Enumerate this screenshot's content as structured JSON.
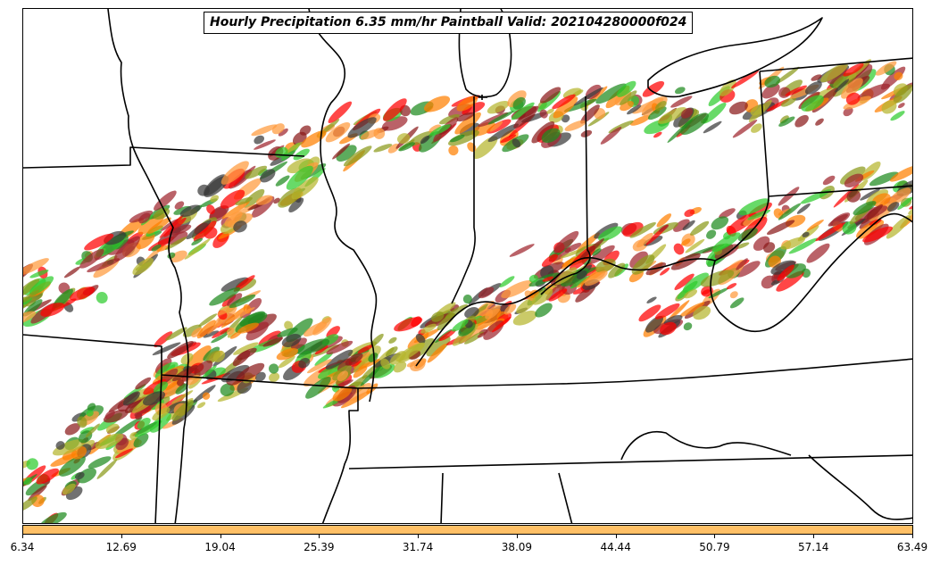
{
  "title": "Hourly Precipitation 6.35 mm/hr Paintball Valid: 202104280000f024",
  "colors": {
    "colorbar": "#ffc066",
    "boundary": "#000000",
    "paintball": [
      "#1f8a1f",
      "#2ecc2e",
      "#8a9a1a",
      "#b5b52e",
      "#ff8000",
      "#ff9a3c",
      "#ff0000",
      "#8b1a1a",
      "#a0262e",
      "#3a3a3a"
    ]
  },
  "colorbar": {
    "min": 6.34,
    "max": 63.49,
    "tick_labels": [
      "6.34",
      "12.69",
      "19.04",
      "25.39",
      "31.74",
      "38.09",
      "44.44",
      "50.79",
      "57.14",
      "63.49"
    ]
  }
}
